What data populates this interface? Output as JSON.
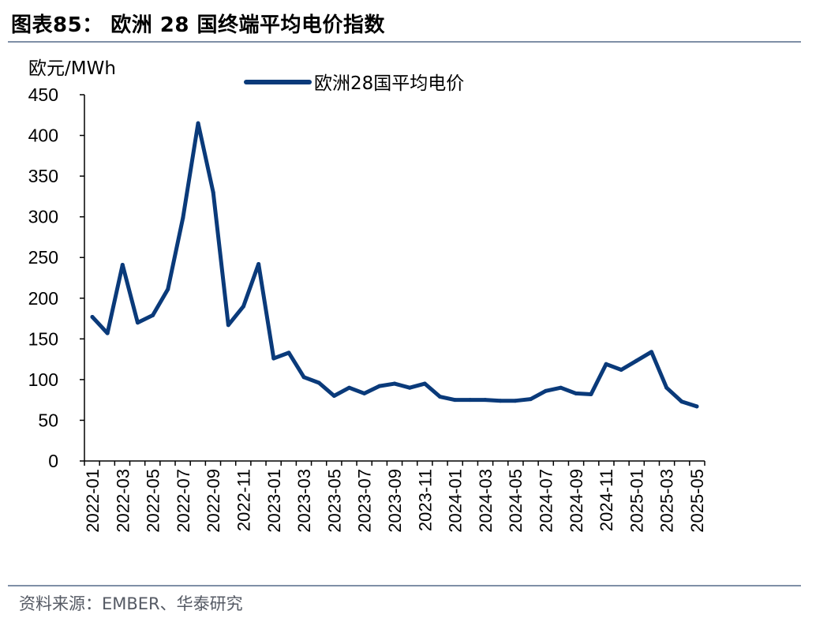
{
  "header": {
    "title": "图表85：  欧洲 28 国终端平均电价指数"
  },
  "footer": {
    "source": "资料来源：EMBER、华泰研究"
  },
  "colors": {
    "series_line": "#0a3a7a",
    "rule": "#7f8fa6",
    "axis": "#000000"
  },
  "chart_data": {
    "type": "line",
    "ylabel": "欧元/MWh",
    "xlabel": "",
    "ylim": [
      0,
      450
    ],
    "yticks": [
      0,
      50,
      100,
      150,
      200,
      250,
      300,
      350,
      400,
      450
    ],
    "grid": false,
    "legend_position": "top-center",
    "x": [
      "2022-01",
      "2022-02",
      "2022-03",
      "2022-04",
      "2022-05",
      "2022-06",
      "2022-07",
      "2022-08",
      "2022-09",
      "2022-10",
      "2022-11",
      "2022-12",
      "2023-01",
      "2023-02",
      "2023-03",
      "2023-04",
      "2023-05",
      "2023-06",
      "2023-07",
      "2023-08",
      "2023-09",
      "2023-10",
      "2023-11",
      "2023-12",
      "2024-01",
      "2024-02",
      "2024-03",
      "2024-04",
      "2024-05",
      "2024-06",
      "2024-07",
      "2024-08",
      "2024-09",
      "2024-10",
      "2024-11",
      "2024-12",
      "2025-01",
      "2025-02",
      "2025-03",
      "2025-04",
      "2025-05"
    ],
    "xtick_labels": [
      "2022-01",
      "2022-03",
      "2022-05",
      "2022-07",
      "2022-09",
      "2022-11",
      "2023-01",
      "2023-03",
      "2023-05",
      "2023-07",
      "2023-09",
      "2023-11",
      "2024-01",
      "2024-03",
      "2024-05",
      "2024-07",
      "2024-09",
      "2024-11",
      "2025-01",
      "2025-03",
      "2025-05"
    ],
    "series": [
      {
        "name": "欧洲28国平均电价",
        "values": [
          177,
          157,
          241,
          170,
          179,
          211,
          299,
          415,
          330,
          167,
          190,
          242,
          126,
          133,
          103,
          96,
          80,
          90,
          83,
          92,
          95,
          90,
          95,
          79,
          75,
          75,
          75,
          74,
          74,
          76,
          86,
          90,
          83,
          82,
          119,
          112,
          123,
          134,
          90,
          73,
          67
        ]
      }
    ]
  }
}
